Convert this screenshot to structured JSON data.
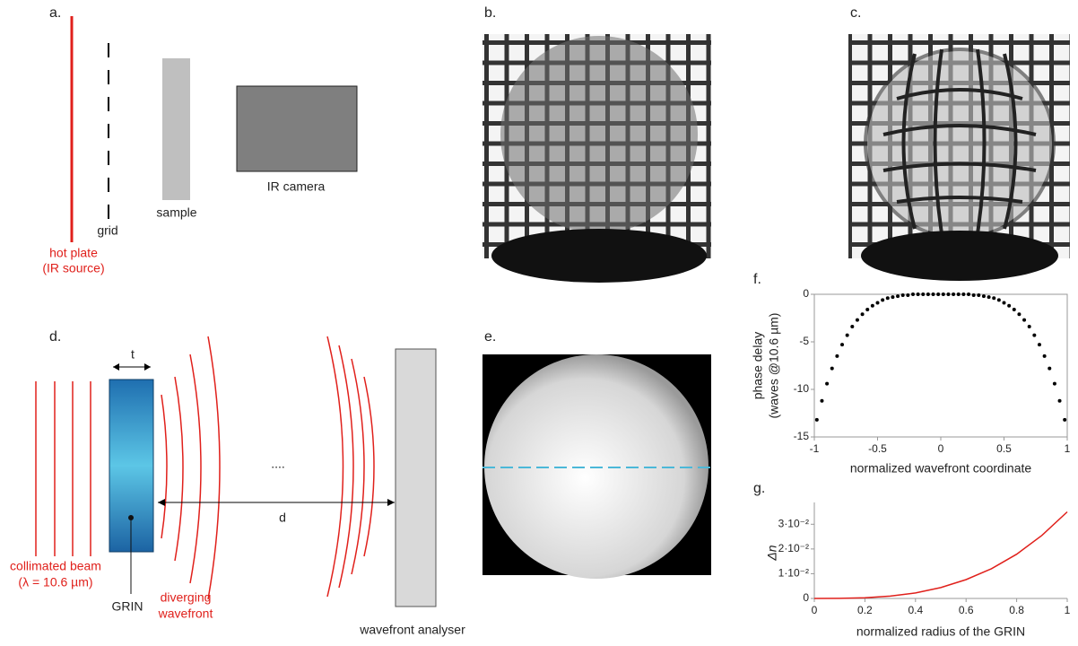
{
  "panels": {
    "a": {
      "label": "a.",
      "hot_plate": [
        "hot plate",
        "(IR source)"
      ],
      "grid": "grid",
      "sample": "sample",
      "camera": "IR camera"
    },
    "b": {
      "label": "b."
    },
    "c": {
      "label": "c."
    },
    "d": {
      "label": "d.",
      "thickness": "t",
      "distance": "d",
      "ellipsis": "....",
      "beam": [
        "collimated beam",
        "(λ = 10.6 µm)"
      ],
      "grin": "GRIN",
      "diverging": [
        "diverging",
        "wavefront"
      ],
      "analyser": "wavefront analyser"
    },
    "e": {
      "label": "e."
    }
  },
  "chart_data": [
    {
      "type": "scatter",
      "label": "f.",
      "ylabel": [
        "phase delay",
        "(waves @10.6 µm)"
      ],
      "xlabel": "normalized wavefront coordinate",
      "color": "#000000",
      "x": [
        -0.98,
        -0.94,
        -0.9,
        -0.86,
        -0.82,
        -0.78,
        -0.74,
        -0.7,
        -0.66,
        -0.62,
        -0.58,
        -0.54,
        -0.5,
        -0.46,
        -0.42,
        -0.38,
        -0.34,
        -0.3,
        -0.26,
        -0.22,
        -0.18,
        -0.14,
        -0.1,
        -0.06,
        -0.02,
        0.02,
        0.06,
        0.1,
        0.14,
        0.18,
        0.22,
        0.26,
        0.3,
        0.34,
        0.38,
        0.42,
        0.46,
        0.5,
        0.54,
        0.58,
        0.62,
        0.66,
        0.7,
        0.74,
        0.78,
        0.82,
        0.86,
        0.9,
        0.94,
        0.98
      ],
      "values": [
        -13.2,
        -11.2,
        -9.4,
        -7.8,
        -6.5,
        -5.3,
        -4.3,
        -3.4,
        -2.7,
        -2.1,
        -1.6,
        -1.2,
        -0.9,
        -0.6,
        -0.4,
        -0.3,
        -0.2,
        -0.1,
        -0.1,
        0,
        0,
        0,
        0,
        0,
        0,
        0,
        0,
        0,
        0,
        0,
        0,
        -0.1,
        -0.1,
        -0.2,
        -0.3,
        -0.4,
        -0.6,
        -0.9,
        -1.2,
        -1.6,
        -2.1,
        -2.7,
        -3.4,
        -4.3,
        -5.3,
        -6.5,
        -7.8,
        -9.4,
        -11.2,
        -13.2
      ],
      "xlim": [
        -1,
        1
      ],
      "ylim": [
        -15,
        0
      ],
      "xticks": [
        -1,
        -0.5,
        0,
        0.5,
        1
      ],
      "yticks": [
        0,
        -5,
        -10,
        -15
      ]
    },
    {
      "type": "line",
      "label": "g.",
      "ylabel": "Δn",
      "xlabel": "normalized radius of the GRIN",
      "color": "#e0201b",
      "x": [
        0,
        0.1,
        0.2,
        0.3,
        0.4,
        0.5,
        0.6,
        0.7,
        0.8,
        0.9,
        1
      ],
      "values": [
        0,
        4e-05,
        0.00028,
        0.00095,
        0.0022,
        0.0044,
        0.0076,
        0.012,
        0.0179,
        0.0255,
        0.035
      ],
      "xlim": [
        0,
        1
      ],
      "ylim": [
        0,
        0.037
      ],
      "xticks": [
        0,
        0.2,
        0.4,
        0.6,
        0.8,
        1
      ],
      "yticks": [
        0,
        {
          "value": 0.01,
          "label": "1·10⁻²"
        },
        {
          "value": 0.02,
          "label": "2·10⁻²"
        },
        {
          "value": 0.03,
          "label": "3·10⁻²"
        }
      ]
    }
  ]
}
